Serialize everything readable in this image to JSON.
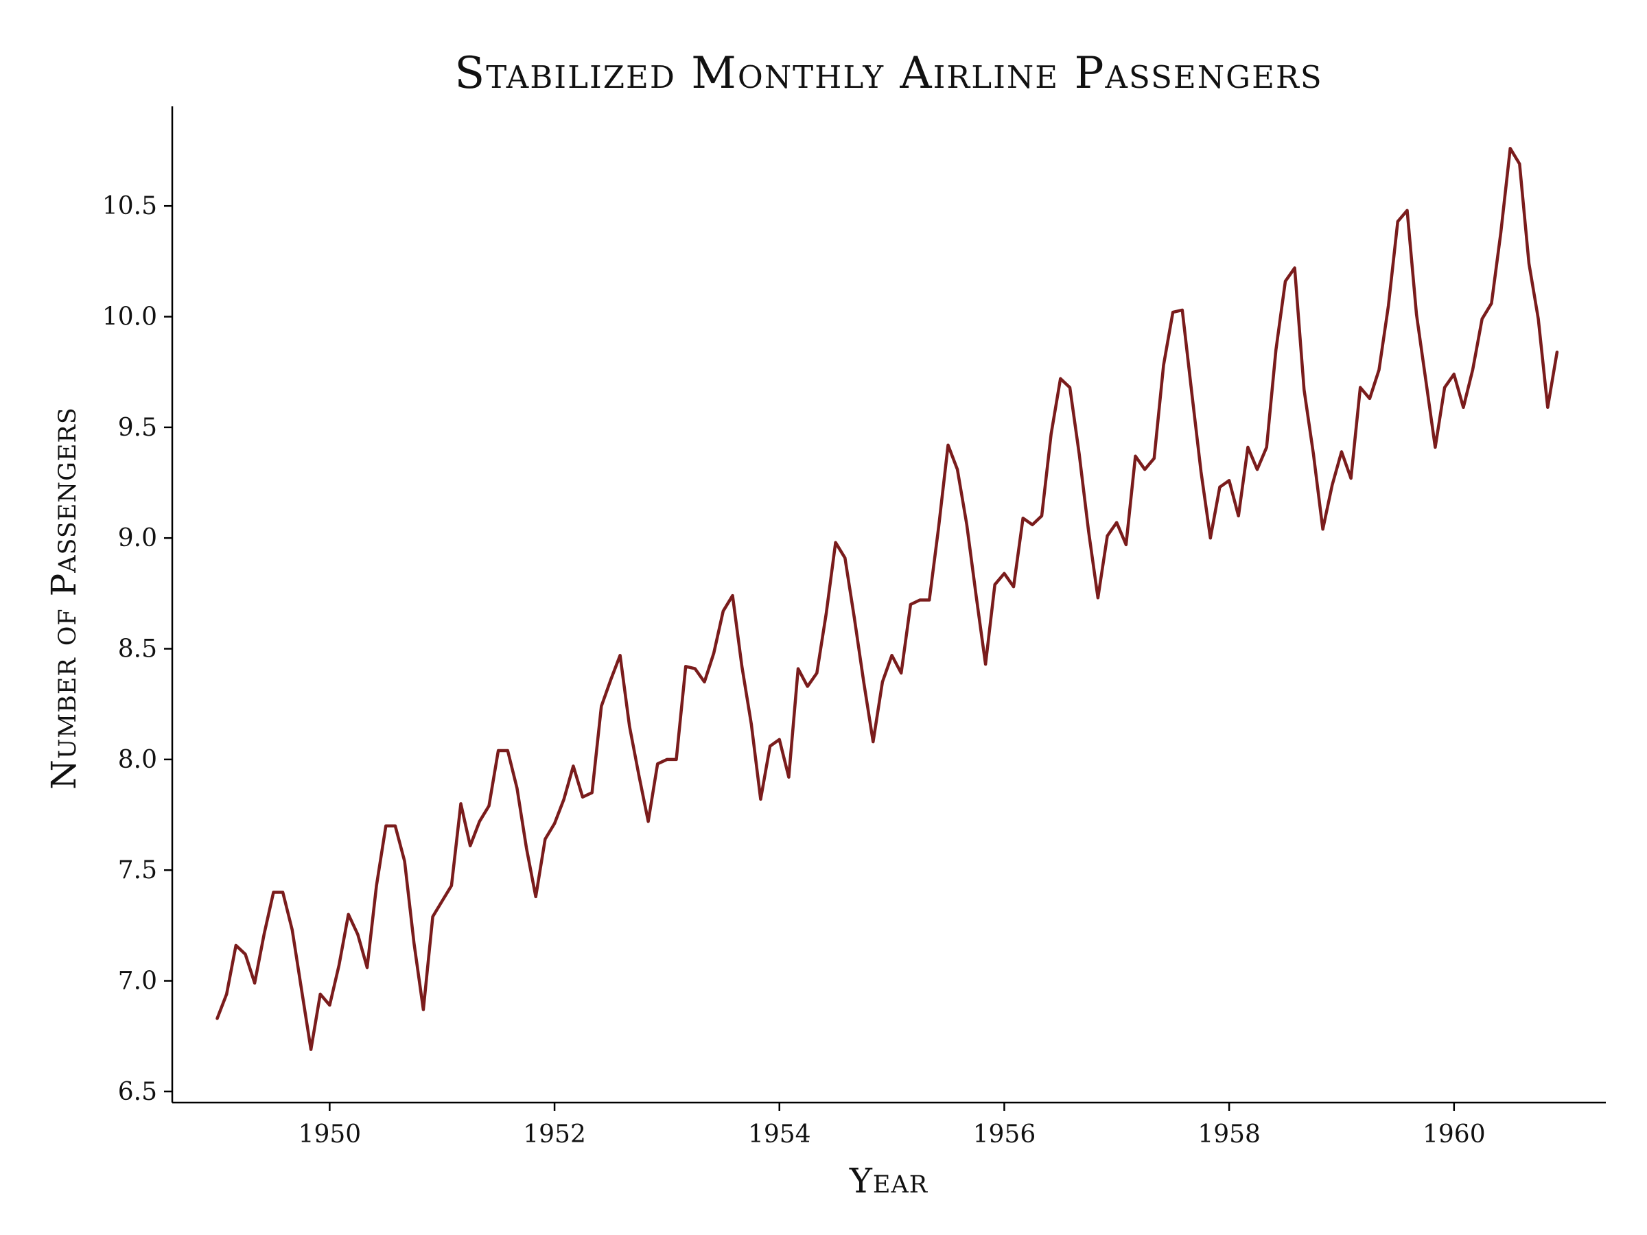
{
  "chart_data": {
    "type": "line",
    "title": "Stabilized Monthly Airline Passengers",
    "xlabel": "Year",
    "ylabel": "Number of Passengers",
    "xlim": [
      1948.6,
      1961.35
    ],
    "ylim": [
      6.45,
      10.95
    ],
    "x_ticks": [
      1950,
      1952,
      1954,
      1956,
      1958,
      1960
    ],
    "y_ticks": [
      6.5,
      7.0,
      7.5,
      8.0,
      8.5,
      9.0,
      9.5,
      10.0,
      10.5
    ],
    "y_tick_labels": [
      "6.5",
      "7.0",
      "7.5",
      "8.0",
      "8.5",
      "9.0",
      "9.5",
      "10.0",
      "10.5"
    ],
    "grid": false,
    "line_color": "#7a1c1c",
    "x_start_year": 1949,
    "x_step": 0.08333,
    "series": [
      {
        "values": [
          6.83,
          6.94,
          7.16,
          7.12,
          6.99,
          7.21,
          7.4,
          7.4,
          7.23,
          6.96,
          6.69,
          6.94,
          6.89,
          7.07,
          7.3,
          7.21,
          7.06,
          7.43,
          7.7,
          7.7,
          7.54,
          7.17,
          6.87,
          7.29,
          7.36,
          7.43,
          7.8,
          7.61,
          7.72,
          7.79,
          8.04,
          8.04,
          7.87,
          7.6,
          7.38,
          7.64,
          7.71,
          7.82,
          7.97,
          7.83,
          7.85,
          8.24,
          8.36,
          8.47,
          8.15,
          7.93,
          7.72,
          7.98,
          8.0,
          8.0,
          8.42,
          8.41,
          8.35,
          8.48,
          8.67,
          8.74,
          8.42,
          8.16,
          7.82,
          8.06,
          8.09,
          7.92,
          8.41,
          8.33,
          8.39,
          8.66,
          8.98,
          8.91,
          8.64,
          8.35,
          8.08,
          8.35,
          8.47,
          8.39,
          8.7,
          8.72,
          8.72,
          9.05,
          9.42,
          9.31,
          9.06,
          8.74,
          8.43,
          8.79,
          8.84,
          8.78,
          9.09,
          9.06,
          9.1,
          9.47,
          9.72,
          9.68,
          9.38,
          9.03,
          8.73,
          9.01,
          9.07,
          8.97,
          9.37,
          9.31,
          9.36,
          9.78,
          10.02,
          10.03,
          9.66,
          9.3,
          9.0,
          9.23,
          9.26,
          9.1,
          9.41,
          9.31,
          9.41,
          9.85,
          10.16,
          10.22,
          9.67,
          9.38,
          9.04,
          9.24,
          9.39,
          9.27,
          9.68,
          9.63,
          9.76,
          10.05,
          10.43,
          10.48,
          10.01,
          9.71,
          9.41,
          9.68,
          9.74,
          9.59,
          9.76,
          9.99,
          10.06,
          10.38,
          10.76,
          10.69,
          10.24,
          9.99,
          9.59,
          9.84
        ]
      }
    ]
  }
}
